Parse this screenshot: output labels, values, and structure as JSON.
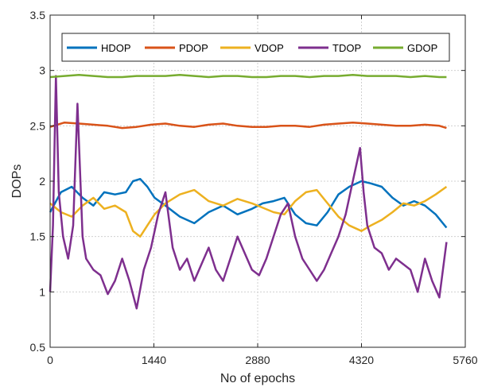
{
  "chart_data": {
    "type": "line",
    "title": "",
    "xlabel": "No of epochs",
    "ylabel": "DOPs",
    "xlim": [
      0,
      5760
    ],
    "ylim": [
      0.5,
      3.5
    ],
    "xticks": [
      0,
      1440,
      2880,
      4320,
      5760
    ],
    "xtick_labels": [
      "0",
      "1440",
      "2880",
      "4320",
      "5760"
    ],
    "yticks": [
      0.5,
      1,
      1.5,
      2,
      2.5,
      3,
      3.5
    ],
    "ytick_labels": [
      "0.5",
      "1",
      "1.5",
      "2",
      "2.5",
      "3",
      "3.5"
    ],
    "grid": true,
    "legend_position": "top",
    "series": [
      {
        "name": "HDOP",
        "color": "#0072BD",
        "x": [
          0,
          150,
          300,
          450,
          600,
          750,
          900,
          1050,
          1150,
          1250,
          1350,
          1450,
          1600,
          1800,
          2000,
          2200,
          2400,
          2600,
          2800,
          2950,
          3100,
          3250,
          3400,
          3550,
          3700,
          3850,
          4000,
          4150,
          4320,
          4450,
          4600,
          4750,
          4900,
          5050,
          5200,
          5350,
          5500
        ],
        "y": [
          1.72,
          1.9,
          1.95,
          1.85,
          1.78,
          1.9,
          1.88,
          1.9,
          2.0,
          2.02,
          1.95,
          1.85,
          1.78,
          1.68,
          1.62,
          1.72,
          1.78,
          1.7,
          1.75,
          1.8,
          1.82,
          1.85,
          1.7,
          1.62,
          1.6,
          1.72,
          1.88,
          1.95,
          2.0,
          1.98,
          1.95,
          1.85,
          1.78,
          1.82,
          1.78,
          1.7,
          1.58
        ]
      },
      {
        "name": "PDOP",
        "color": "#D95319",
        "x": [
          0,
          200,
          400,
          600,
          800,
          1000,
          1200,
          1400,
          1600,
          1800,
          2000,
          2200,
          2400,
          2600,
          2800,
          3000,
          3200,
          3400,
          3600,
          3800,
          4000,
          4200,
          4400,
          4600,
          4800,
          5000,
          5200,
          5400,
          5500
        ],
        "y": [
          2.49,
          2.53,
          2.52,
          2.51,
          2.5,
          2.48,
          2.49,
          2.51,
          2.52,
          2.5,
          2.49,
          2.51,
          2.52,
          2.5,
          2.49,
          2.49,
          2.5,
          2.5,
          2.49,
          2.51,
          2.52,
          2.53,
          2.52,
          2.51,
          2.5,
          2.5,
          2.51,
          2.5,
          2.48
        ]
      },
      {
        "name": "VDOP",
        "color": "#EDB120",
        "x": [
          0,
          150,
          300,
          450,
          600,
          750,
          900,
          1050,
          1150,
          1250,
          1350,
          1450,
          1600,
          1800,
          2000,
          2200,
          2400,
          2600,
          2800,
          2950,
          3100,
          3250,
          3400,
          3550,
          3700,
          3850,
          4000,
          4150,
          4320,
          4450,
          4600,
          4750,
          4900,
          5050,
          5200,
          5350,
          5500
        ],
        "y": [
          1.8,
          1.72,
          1.68,
          1.78,
          1.85,
          1.75,
          1.78,
          1.72,
          1.55,
          1.5,
          1.6,
          1.7,
          1.8,
          1.88,
          1.92,
          1.82,
          1.78,
          1.84,
          1.8,
          1.76,
          1.72,
          1.7,
          1.82,
          1.9,
          1.92,
          1.8,
          1.68,
          1.6,
          1.55,
          1.6,
          1.65,
          1.72,
          1.8,
          1.78,
          1.82,
          1.88,
          1.95
        ]
      },
      {
        "name": "TDOP",
        "color": "#7E2F8E",
        "x": [
          0,
          40,
          80,
          120,
          180,
          250,
          320,
          380,
          450,
          500,
          600,
          700,
          800,
          900,
          1000,
          1100,
          1200,
          1300,
          1400,
          1500,
          1600,
          1700,
          1800,
          1900,
          2000,
          2100,
          2200,
          2300,
          2400,
          2500,
          2600,
          2700,
          2800,
          2900,
          3000,
          3100,
          3200,
          3300,
          3400,
          3500,
          3600,
          3700,
          3800,
          3900,
          4000,
          4100,
          4200,
          4300,
          4350,
          4400,
          4500,
          4600,
          4700,
          4800,
          4900,
          5000,
          5100,
          5200,
          5300,
          5400,
          5500
        ],
        "y": [
          1.0,
          1.6,
          2.95,
          1.9,
          1.5,
          1.3,
          1.6,
          2.7,
          1.5,
          1.3,
          1.2,
          1.15,
          0.98,
          1.1,
          1.3,
          1.1,
          0.85,
          1.2,
          1.4,
          1.7,
          1.9,
          1.4,
          1.2,
          1.3,
          1.1,
          1.25,
          1.4,
          1.2,
          1.1,
          1.3,
          1.5,
          1.35,
          1.2,
          1.15,
          1.3,
          1.5,
          1.7,
          1.8,
          1.5,
          1.3,
          1.2,
          1.1,
          1.2,
          1.35,
          1.5,
          1.7,
          2.0,
          2.3,
          1.9,
          1.6,
          1.4,
          1.35,
          1.2,
          1.3,
          1.25,
          1.2,
          1.0,
          1.3,
          1.1,
          0.95,
          1.45
        ]
      },
      {
        "name": "GDOP",
        "color": "#77AC30",
        "x": [
          0,
          200,
          400,
          600,
          800,
          1000,
          1200,
          1400,
          1600,
          1800,
          2000,
          2200,
          2400,
          2600,
          2800,
          3000,
          3200,
          3400,
          3600,
          3800,
          4000,
          4200,
          4400,
          4600,
          4800,
          5000,
          5200,
          5400,
          5500
        ],
        "y": [
          2.94,
          2.95,
          2.96,
          2.95,
          2.94,
          2.94,
          2.95,
          2.95,
          2.95,
          2.96,
          2.95,
          2.94,
          2.95,
          2.95,
          2.94,
          2.94,
          2.95,
          2.95,
          2.94,
          2.95,
          2.95,
          2.96,
          2.95,
          2.95,
          2.95,
          2.94,
          2.95,
          2.94,
          2.94
        ]
      }
    ]
  }
}
